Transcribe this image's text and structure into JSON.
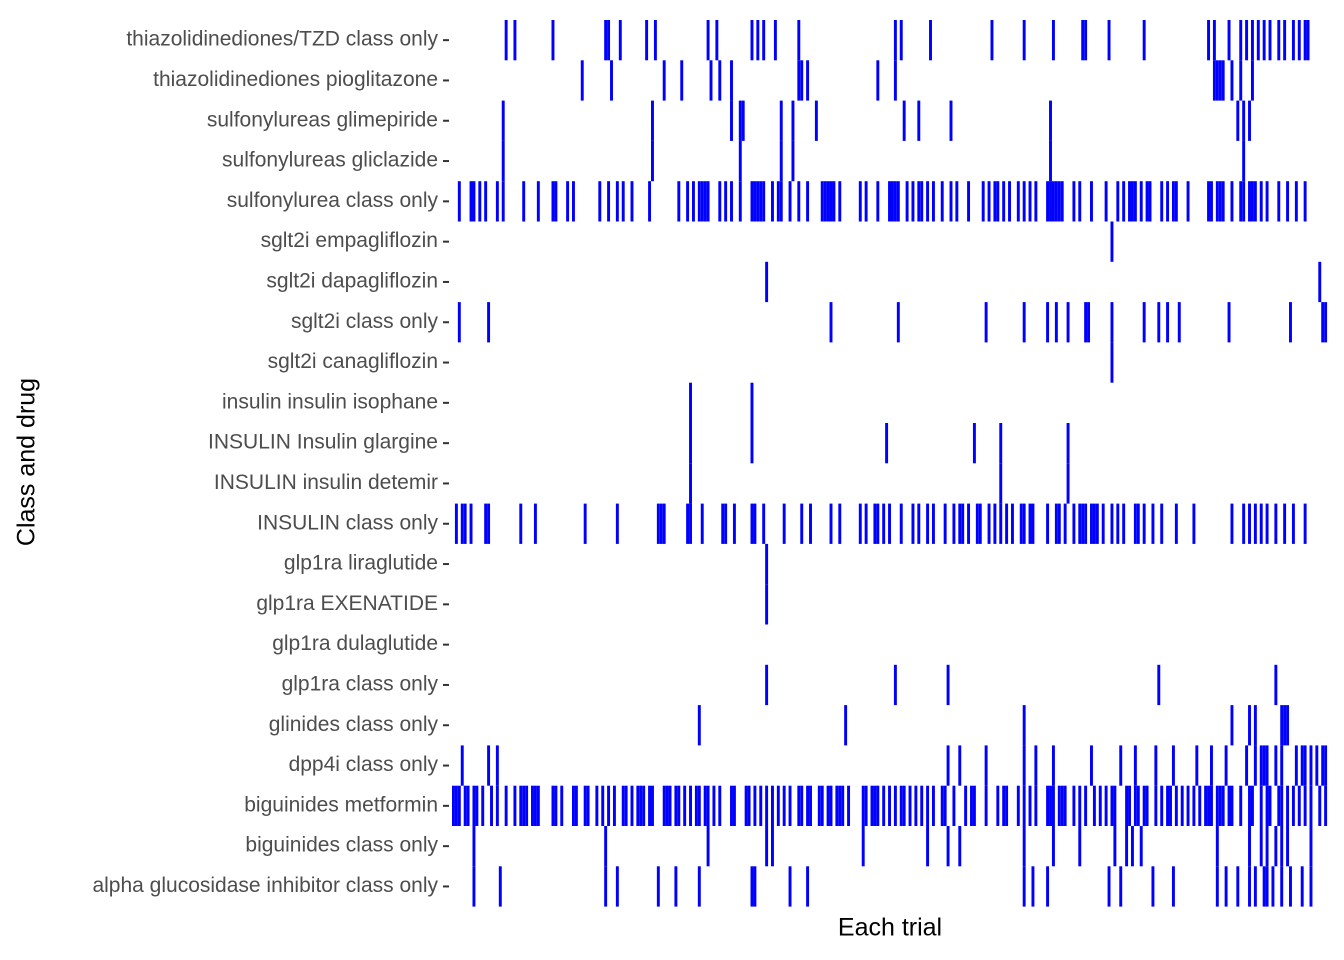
{
  "chart_data": {
    "type": "tile",
    "x_label": "Each trial",
    "y_label": "Class and drug",
    "color": "#0000ff",
    "xlim": [
      0,
      300
    ],
    "series": [
      {
        "name": "thiazolidinediones/TZD class only",
        "values": [
          18,
          21,
          34,
          52,
          53,
          57,
          66,
          69,
          87,
          90,
          102,
          104,
          106,
          110,
          118,
          151,
          153,
          163,
          184,
          195,
          205,
          215,
          216,
          224,
          236,
          258,
          260,
          265,
          269,
          271,
          273,
          275,
          277,
          279,
          282,
          284,
          287,
          289,
          291,
          292
        ]
      },
      {
        "name": "thiazolidinediones pioglitazone",
        "values": [
          44,
          54,
          72,
          78,
          88,
          91,
          95,
          118,
          119,
          121,
          145,
          151,
          260,
          261,
          262,
          263,
          266,
          269,
          273
        ]
      },
      {
        "name": "sulfonylureas glimepiride",
        "values": [
          17,
          68,
          95,
          98,
          99,
          112,
          116,
          124,
          154,
          159,
          170,
          204,
          268,
          270,
          272
        ]
      },
      {
        "name": "sulfonylureas gliclazide",
        "values": [
          17,
          68,
          98,
          112,
          116,
          204,
          270
        ]
      },
      {
        "name": "sulfonylurea class only",
        "values": [
          2,
          6,
          7,
          9,
          11,
          15,
          17,
          24,
          29,
          34,
          35,
          39,
          41,
          50,
          53,
          56,
          58,
          61,
          67,
          77,
          80,
          82,
          84,
          85,
          86,
          87,
          91,
          93,
          95,
          98,
          102,
          103,
          104,
          105,
          106,
          109,
          111,
          112,
          115,
          118,
          121,
          126,
          127,
          128,
          129,
          130,
          132,
          139,
          141,
          145,
          149,
          150,
          151,
          152,
          155,
          157,
          159,
          160,
          162,
          164,
          167,
          170,
          172,
          176,
          181,
          183,
          185,
          186,
          188,
          190,
          193,
          195,
          197,
          199,
          203,
          204,
          205,
          206,
          207,
          208,
          212,
          214,
          218,
          223,
          227,
          229,
          231,
          232,
          233,
          235,
          237,
          238,
          242,
          244,
          246,
          247,
          251,
          258,
          259,
          261,
          262,
          263,
          266,
          269,
          270,
          272,
          273,
          274,
          276,
          278,
          282,
          285,
          288,
          291
        ]
      },
      {
        "name": "sglt2i empagliflozin",
        "values": [
          225
        ]
      },
      {
        "name": "sglt2i dapagliflozin",
        "values": [
          107,
          296
        ]
      },
      {
        "name": "sglt2i class only",
        "values": [
          2,
          12,
          129,
          152,
          182,
          195,
          203,
          206,
          210,
          216,
          217,
          225,
          236,
          241,
          244,
          248,
          265,
          286,
          297,
          298
        ]
      },
      {
        "name": "sglt2i canagliflozin",
        "values": [
          225
        ]
      },
      {
        "name": "insulin insulin isophane",
        "values": [
          81,
          102
        ]
      },
      {
        "name": "INSULIN Insulin glargine",
        "values": [
          81,
          102,
          148,
          178,
          187,
          210
        ]
      },
      {
        "name": "INSULIN insulin detemir",
        "values": [
          81,
          187,
          210
        ]
      },
      {
        "name": "INSULIN class only",
        "values": [
          1,
          3,
          4,
          6,
          11,
          12,
          23,
          28,
          45,
          56,
          70,
          71,
          72,
          80,
          81,
          85,
          92,
          93,
          96,
          102,
          103,
          106,
          113,
          119,
          122,
          129,
          132,
          139,
          141,
          144,
          145,
          147,
          149,
          153,
          157,
          159,
          162,
          164,
          168,
          171,
          173,
          174,
          176,
          179,
          180,
          183,
          185,
          187,
          189,
          191,
          194,
          195,
          197,
          198,
          203,
          206,
          207,
          209,
          212,
          214,
          215,
          216,
          218,
          219,
          220,
          222,
          225,
          227,
          229,
          233,
          234,
          236,
          239,
          242,
          247,
          253,
          266,
          270,
          272,
          274,
          276,
          278,
          281,
          284,
          287,
          291
        ]
      },
      {
        "name": "glp1ra liraglutide",
        "values": [
          107
        ]
      },
      {
        "name": "glp1ra EXENATIDE",
        "values": [
          107
        ]
      },
      {
        "name": "glp1ra dulaglutide",
        "values": []
      },
      {
        "name": "glp1ra class only",
        "values": [
          107,
          151,
          169,
          241,
          281
        ]
      },
      {
        "name": "glinides class only",
        "values": [
          84,
          134,
          195,
          266,
          272,
          274,
          283,
          284,
          285
        ]
      },
      {
        "name": "dpp4i class only",
        "values": [
          3,
          12,
          15,
          169,
          173,
          182,
          195,
          199,
          205,
          218,
          228,
          233,
          240,
          246,
          254,
          259,
          264,
          271,
          274,
          276,
          277,
          278,
          281,
          283,
          288,
          290,
          291,
          293,
          295,
          297,
          298
        ]
      },
      {
        "name": "biguinides metformin",
        "values": [
          0,
          1,
          2,
          4,
          5,
          7,
          8,
          10,
          13,
          15,
          18,
          21,
          23,
          24,
          25,
          27,
          28,
          29,
          34,
          35,
          37,
          41,
          42,
          45,
          46,
          49,
          51,
          53,
          55,
          58,
          59,
          61,
          63,
          64,
          65,
          67,
          68,
          72,
          73,
          74,
          76,
          77,
          79,
          81,
          83,
          84,
          86,
          87,
          89,
          91,
          95,
          96,
          100,
          101,
          103,
          105,
          107,
          109,
          111,
          113,
          115,
          118,
          119,
          121,
          122,
          125,
          126,
          128,
          129,
          131,
          132,
          133,
          135,
          140,
          141,
          143,
          144,
          145,
          147,
          149,
          151,
          153,
          154,
          156,
          158,
          160,
          162,
          164,
          167,
          168,
          171,
          175,
          177,
          178,
          182,
          186,
          188,
          189,
          193,
          195,
          197,
          199,
          203,
          204,
          205,
          207,
          208,
          209,
          212,
          214,
          216,
          219,
          221,
          223,
          225,
          226,
          230,
          231,
          233,
          234,
          236,
          237,
          240,
          242,
          244,
          245,
          247,
          249,
          251,
          253,
          255,
          257,
          258,
          259,
          261,
          262,
          263,
          265,
          266,
          269,
          272,
          273,
          276,
          278,
          279,
          282,
          283,
          285,
          287,
          289,
          291,
          293,
          296,
          298
        ]
      },
      {
        "name": "biguinides class only",
        "values": [
          7,
          52,
          87,
          107,
          109,
          140,
          162,
          169,
          173,
          195,
          205,
          214,
          226,
          230,
          232,
          235,
          261,
          272,
          276,
          278,
          281,
          283,
          285,
          293
        ]
      },
      {
        "name": "alpha glucosidase inhibitor class only",
        "values": [
          7,
          16,
          52,
          56,
          70,
          76,
          84,
          102,
          103,
          115,
          121,
          195,
          198,
          203,
          224,
          228,
          239,
          246,
          261,
          264,
          268,
          272,
          274,
          277,
          278,
          280,
          283,
          286,
          290,
          293
        ]
      }
    ]
  }
}
